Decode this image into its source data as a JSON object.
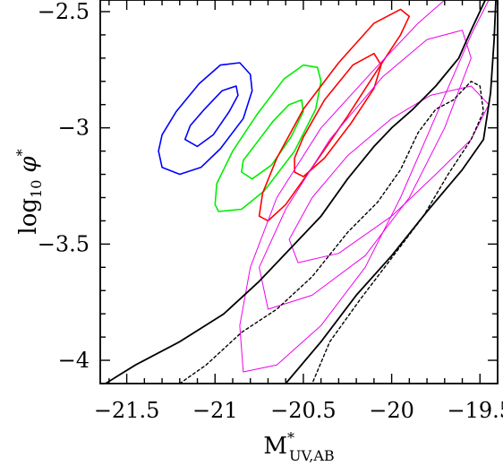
{
  "chart_data": {
    "type": "line",
    "xlabel": "M*UV,AB",
    "xlabel_main": "M",
    "xlabel_sup": "*",
    "xlabel_sub": "UV,AB",
    "ylabel": "log10 φ*",
    "ylabel_main": "log",
    "ylabel_sub": "10",
    "ylabel_sym": "φ",
    "ylabel_sup": "*",
    "xlim": [
      -21.65,
      -19.4
    ],
    "ylim": [
      -4.1,
      -2.45
    ],
    "xticks": [
      -21.5,
      -21,
      -20.5,
      -20,
      -19.5
    ],
    "xtick_labels": [
      "−21.5",
      "−21",
      "−20.5",
      "−20",
      "−19.5"
    ],
    "yticks": [
      -4,
      -3.5,
      -3,
      -2.5
    ],
    "ytick_labels": [
      "−4",
      "−3.5",
      "−3",
      "−2.5"
    ],
    "grid": false,
    "legend": "none",
    "series": [
      {
        "color": "#0000ff",
        "style": "solid",
        "width": 1.6,
        "closed": true,
        "points": [
          [
            -21.32,
            -3.1
          ],
          [
            -21.3,
            -3.17
          ],
          [
            -21.2,
            -3.2
          ],
          [
            -21.08,
            -3.17
          ],
          [
            -20.97,
            -3.09
          ],
          [
            -20.84,
            -2.96
          ],
          [
            -20.79,
            -2.84
          ],
          [
            -20.8,
            -2.77
          ],
          [
            -20.86,
            -2.72
          ],
          [
            -20.97,
            -2.73
          ],
          [
            -21.09,
            -2.81
          ],
          [
            -21.22,
            -2.93
          ],
          [
            -21.3,
            -3.03
          ]
        ]
      },
      {
        "color": "#0000ff",
        "style": "solid",
        "width": 1.6,
        "closed": true,
        "points": [
          [
            -21.17,
            -3.05
          ],
          [
            -21.1,
            -3.08
          ],
          [
            -21.01,
            -3.03
          ],
          [
            -20.92,
            -2.93
          ],
          [
            -20.87,
            -2.86
          ],
          [
            -20.88,
            -2.82
          ],
          [
            -20.96,
            -2.84
          ],
          [
            -21.06,
            -2.92
          ],
          [
            -21.14,
            -2.99
          ]
        ]
      },
      {
        "color": "#00ee00",
        "style": "solid",
        "width": 1.6,
        "closed": true,
        "points": [
          [
            -21.0,
            -3.33
          ],
          [
            -20.98,
            -3.36
          ],
          [
            -20.85,
            -3.35
          ],
          [
            -20.72,
            -3.27
          ],
          [
            -20.55,
            -3.1
          ],
          [
            -20.43,
            -2.92
          ],
          [
            -20.4,
            -2.8
          ],
          [
            -20.42,
            -2.74
          ],
          [
            -20.5,
            -2.73
          ],
          [
            -20.61,
            -2.79
          ],
          [
            -20.76,
            -2.94
          ],
          [
            -20.9,
            -3.1
          ],
          [
            -20.99,
            -3.24
          ]
        ]
      },
      {
        "color": "#00ee00",
        "style": "solid",
        "width": 1.6,
        "closed": true,
        "points": [
          [
            -20.85,
            -3.19
          ],
          [
            -20.79,
            -3.22
          ],
          [
            -20.68,
            -3.16
          ],
          [
            -20.57,
            -3.04
          ],
          [
            -20.5,
            -2.93
          ],
          [
            -20.51,
            -2.88
          ],
          [
            -20.58,
            -2.9
          ],
          [
            -20.67,
            -2.97
          ],
          [
            -20.77,
            -3.07
          ],
          [
            -20.84,
            -3.14
          ]
        ]
      },
      {
        "color": "#ff0000",
        "style": "solid",
        "width": 1.6,
        "closed": true,
        "points": [
          [
            -20.75,
            -3.38
          ],
          [
            -20.7,
            -3.4
          ],
          [
            -20.6,
            -3.33
          ],
          [
            -20.45,
            -3.17
          ],
          [
            -20.25,
            -2.95
          ],
          [
            -20.08,
            -2.75
          ],
          [
            -19.95,
            -2.6
          ],
          [
            -19.9,
            -2.52
          ],
          [
            -19.95,
            -2.49
          ],
          [
            -20.1,
            -2.55
          ],
          [
            -20.3,
            -2.72
          ],
          [
            -20.5,
            -2.92
          ],
          [
            -20.65,
            -3.13
          ],
          [
            -20.73,
            -3.28
          ]
        ]
      },
      {
        "color": "#ff0000",
        "style": "solid",
        "width": 1.6,
        "closed": true,
        "points": [
          [
            -20.55,
            -3.19
          ],
          [
            -20.5,
            -3.21
          ],
          [
            -20.38,
            -3.13
          ],
          [
            -20.23,
            -2.98
          ],
          [
            -20.1,
            -2.83
          ],
          [
            -20.06,
            -2.73
          ],
          [
            -20.1,
            -2.68
          ],
          [
            -20.22,
            -2.73
          ],
          [
            -20.38,
            -2.88
          ],
          [
            -20.5,
            -3.04
          ],
          [
            -20.55,
            -3.13
          ]
        ]
      },
      {
        "color": "#ee00ee",
        "style": "solid",
        "width": 1,
        "closed": true,
        "points": [
          [
            -20.84,
            -4.05
          ],
          [
            -20.86,
            -3.85
          ],
          [
            -20.8,
            -3.6
          ],
          [
            -20.65,
            -3.3
          ],
          [
            -20.4,
            -3.0
          ],
          [
            -20.1,
            -2.75
          ],
          [
            -19.85,
            -2.55
          ],
          [
            -19.7,
            -2.45
          ],
          [
            -19.45,
            -2.45
          ],
          [
            -19.55,
            -2.6
          ],
          [
            -19.75,
            -2.95
          ],
          [
            -19.95,
            -3.3
          ],
          [
            -20.15,
            -3.6
          ],
          [
            -20.4,
            -3.85
          ],
          [
            -20.65,
            -4.02
          ]
        ]
      },
      {
        "color": "#ee00ee",
        "style": "solid",
        "width": 1,
        "closed": true,
        "points": [
          [
            -20.7,
            -3.78
          ],
          [
            -20.75,
            -3.6
          ],
          [
            -20.6,
            -3.35
          ],
          [
            -20.35,
            -3.05
          ],
          [
            -20.05,
            -2.78
          ],
          [
            -19.8,
            -2.62
          ],
          [
            -19.6,
            -2.58
          ],
          [
            -19.55,
            -2.7
          ],
          [
            -19.7,
            -3.0
          ],
          [
            -19.9,
            -3.3
          ],
          [
            -20.15,
            -3.55
          ],
          [
            -20.45,
            -3.72
          ]
        ]
      },
      {
        "color": "#ee00ee",
        "style": "solid",
        "width": 1,
        "closed": true,
        "points": [
          [
            -20.53,
            -3.58
          ],
          [
            -20.58,
            -3.48
          ],
          [
            -20.45,
            -3.3
          ],
          [
            -20.25,
            -3.12
          ],
          [
            -20.0,
            -2.96
          ],
          [
            -19.78,
            -2.86
          ],
          [
            -19.55,
            -2.82
          ],
          [
            -19.45,
            -2.9
          ],
          [
            -19.55,
            -3.05
          ],
          [
            -19.75,
            -3.2
          ],
          [
            -20.0,
            -3.38
          ],
          [
            -20.3,
            -3.54
          ]
        ]
      },
      {
        "color": "#000000",
        "style": "solid",
        "width": 1.8,
        "closed": false,
        "points": [
          [
            -21.62,
            -4.1
          ],
          [
            -21.45,
            -4.02
          ],
          [
            -21.2,
            -3.92
          ],
          [
            -20.95,
            -3.8
          ],
          [
            -20.75,
            -3.66
          ],
          [
            -20.55,
            -3.5
          ],
          [
            -20.4,
            -3.38
          ],
          [
            -20.25,
            -3.22
          ],
          [
            -20.1,
            -3.08
          ],
          [
            -20.0,
            -3.0
          ],
          [
            -19.88,
            -2.92
          ],
          [
            -19.75,
            -2.82
          ],
          [
            -19.62,
            -2.7
          ],
          [
            -19.55,
            -2.58
          ],
          [
            -19.47,
            -2.45
          ]
        ]
      },
      {
        "color": "#000000",
        "style": "solid",
        "width": 1.8,
        "closed": false,
        "points": [
          [
            -20.6,
            -4.1
          ],
          [
            -20.4,
            -3.92
          ],
          [
            -20.2,
            -3.72
          ],
          [
            -20.0,
            -3.55
          ],
          [
            -19.8,
            -3.36
          ],
          [
            -19.6,
            -3.18
          ],
          [
            -19.48,
            -3.05
          ],
          [
            -19.44,
            -2.85
          ],
          [
            -19.42,
            -2.62
          ],
          [
            -19.41,
            -2.45
          ]
        ]
      },
      {
        "color": "#000000",
        "style": "dashed",
        "width": 1.4,
        "closed": false,
        "points": [
          [
            -21.2,
            -4.1
          ],
          [
            -21.05,
            -4.02
          ],
          [
            -20.85,
            -3.88
          ],
          [
            -20.65,
            -3.78
          ],
          [
            -20.45,
            -3.64
          ],
          [
            -20.25,
            -3.45
          ],
          [
            -20.08,
            -3.32
          ],
          [
            -19.95,
            -3.18
          ],
          [
            -19.85,
            -3.02
          ],
          [
            -19.75,
            -2.92
          ],
          [
            -19.65,
            -2.88
          ],
          [
            -19.6,
            -2.84
          ],
          [
            -19.55,
            -2.8
          ],
          [
            -19.5,
            -2.82
          ],
          [
            -19.48,
            -2.93
          ],
          [
            -19.55,
            -3.05
          ],
          [
            -19.68,
            -3.2
          ],
          [
            -19.82,
            -3.38
          ],
          [
            -20.0,
            -3.56
          ],
          [
            -20.18,
            -3.74
          ],
          [
            -20.35,
            -3.92
          ],
          [
            -20.45,
            -4.1
          ]
        ]
      }
    ]
  }
}
